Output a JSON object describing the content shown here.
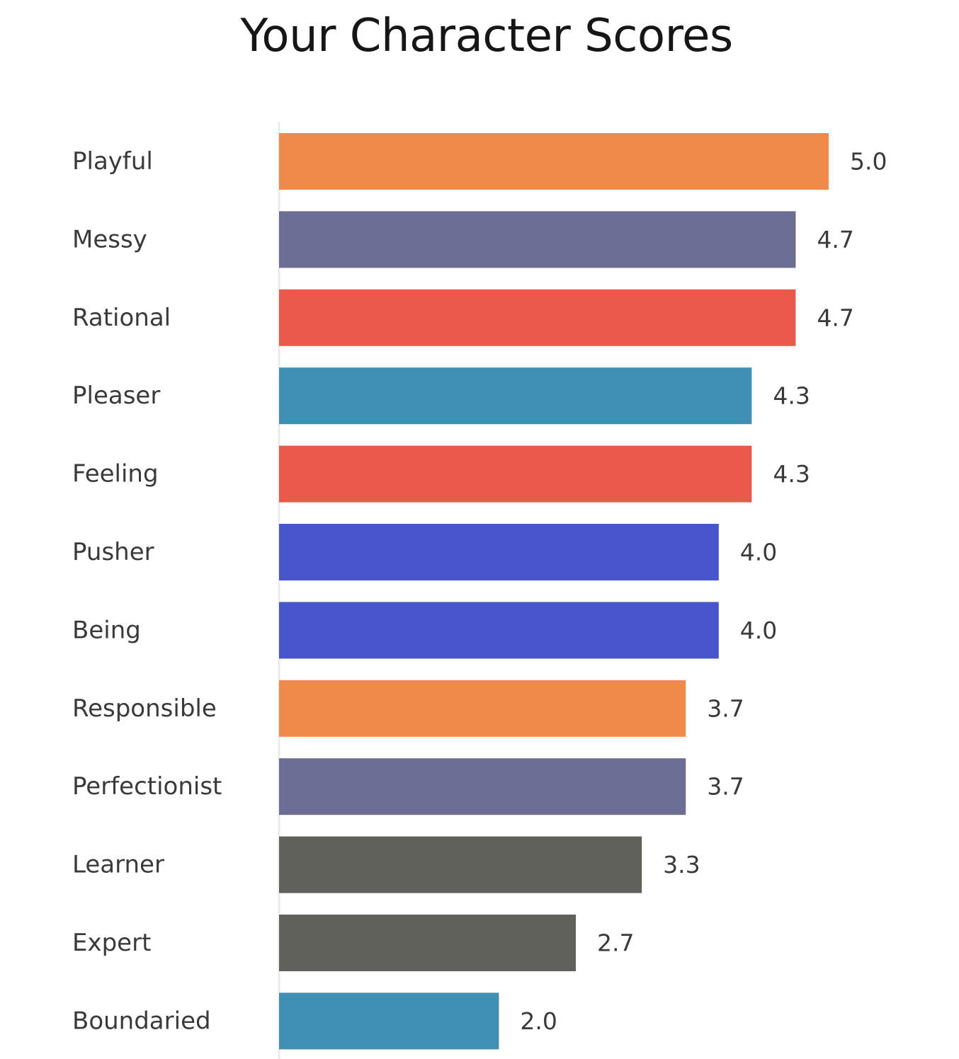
{
  "chart_data": {
    "type": "bar",
    "orientation": "horizontal",
    "title": "Your Character Scores",
    "xlabel": "",
    "ylabel": "",
    "xlim": [
      0,
      5
    ],
    "grid": false,
    "legend": "none",
    "categories": [
      "Playful",
      "Messy",
      "Rational",
      "Pleaser",
      "Feeling",
      "Pusher",
      "Being",
      "Responsible",
      "Perfectionist",
      "Learner",
      "Expert",
      "Boundaried"
    ],
    "values": [
      5.0,
      4.7,
      4.7,
      4.3,
      4.3,
      4.0,
      4.0,
      3.7,
      3.7,
      3.3,
      2.7,
      2.0
    ],
    "value_labels": [
      "5.0",
      "4.7",
      "4.7",
      "4.3",
      "4.3",
      "4.0",
      "4.0",
      "3.7",
      "3.7",
      "3.3",
      "2.7",
      "2.0"
    ],
    "colors": [
      "#ee8b4a",
      "#6c6f93",
      "#e95a4a",
      "#3f90b3",
      "#e95a4a",
      "#4856cb",
      "#4856cb",
      "#ee8b4a",
      "#6c6f93",
      "#62625d",
      "#62625d",
      "#3f90b3"
    ]
  }
}
